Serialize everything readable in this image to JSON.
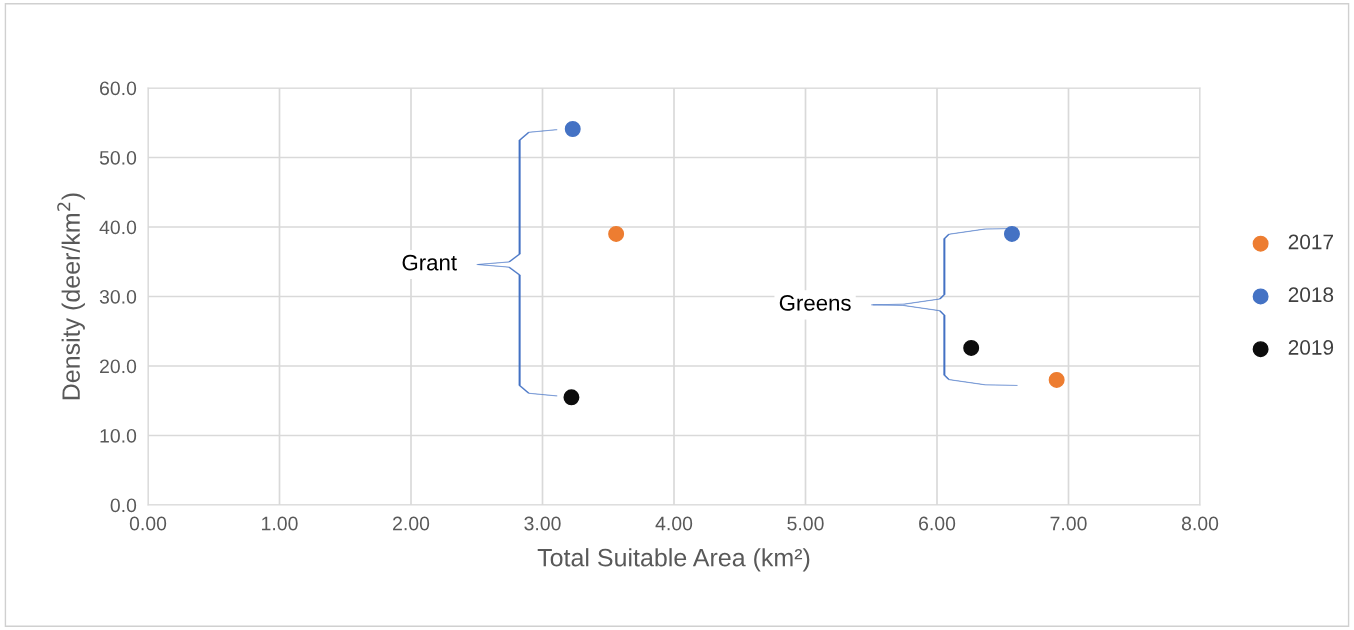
{
  "chart_data": {
    "type": "scatter",
    "xlabel": "Total Suitable Area (km²)",
    "ylabel": "Density (deer/km$^{2}$)",
    "series": [
      {
        "name": "2017",
        "color": "#ed7d31",
        "x": [
          3.56,
          6.91
        ],
        "values": [
          39.0,
          18.0
        ]
      },
      {
        "name": "2018",
        "color": "#4472c4",
        "x": [
          3.23,
          6.57
        ],
        "values": [
          54.1,
          39.0
        ]
      },
      {
        "name": "2019",
        "color": "#0d0d0d",
        "x": [
          3.22,
          6.26
        ],
        "values": [
          15.5,
          22.6
        ]
      }
    ],
    "xlim": [
      0,
      8
    ],
    "ylim": [
      0,
      60
    ],
    "xticks": [
      {
        "value": 0,
        "label": "0.00"
      },
      {
        "value": 1,
        "label": "1.00"
      },
      {
        "value": 2,
        "label": "2.00"
      },
      {
        "value": 3,
        "label": "3.00"
      },
      {
        "value": 4,
        "label": "4.00"
      },
      {
        "value": 5,
        "label": "5.00"
      },
      {
        "value": 6,
        "label": "6.00"
      },
      {
        "value": 7,
        "label": "7.00"
      },
      {
        "value": 8,
        "label": "8.00"
      }
    ],
    "yticks": [
      {
        "value": 0,
        "label": "0.0"
      },
      {
        "value": 10,
        "label": "10.0"
      },
      {
        "value": 20,
        "label": "20.0"
      },
      {
        "value": 30,
        "label": "30.0"
      },
      {
        "value": 40,
        "label": "40.0"
      },
      {
        "value": 50,
        "label": "50.0"
      },
      {
        "value": 60,
        "label": "60.0"
      }
    ],
    "annotations": [
      "Grant",
      "Greens"
    ],
    "grid": true,
    "legend": "right",
    "marker": "circle"
  }
}
